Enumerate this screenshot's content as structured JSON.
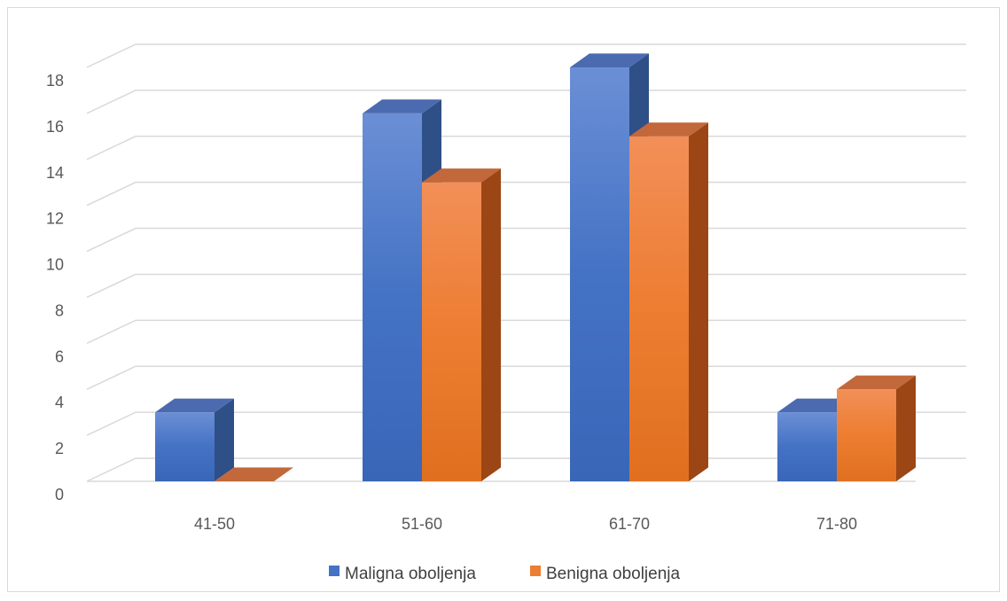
{
  "chart_data": {
    "type": "bar",
    "style": "3d-clustered-column",
    "categories": [
      "41-50",
      "51-60",
      "61-70",
      "71-80"
    ],
    "series": [
      {
        "name": "Maligna oboljenja",
        "values": [
          3,
          16,
          18,
          3
        ],
        "color": "#4472c4"
      },
      {
        "name": "Benigna oboljenja",
        "values": [
          0,
          13,
          15,
          4
        ],
        "color": "#ed7d31"
      }
    ],
    "y_ticks": [
      "0",
      "2",
      "4",
      "6",
      "8",
      "10",
      "12",
      "14",
      "16",
      "18"
    ],
    "ylim": [
      0,
      18
    ],
    "grid": true,
    "legend": "bottom"
  }
}
